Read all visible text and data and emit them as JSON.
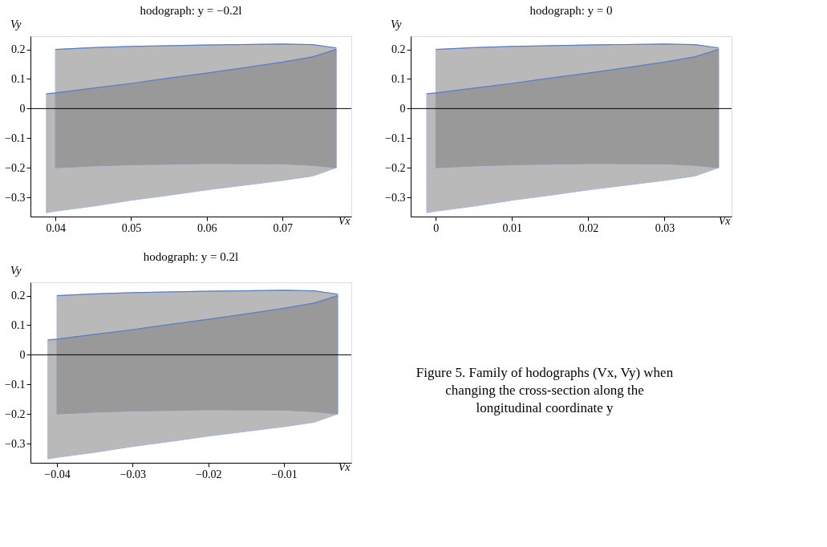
{
  "chart_data": [
    {
      "type": "line",
      "title": "hodograph: y = −0.2l",
      "xlabel": "Vx",
      "ylabel": "Vy",
      "xlim": [
        0.0367,
        0.0791
      ],
      "ylim": [
        -0.365,
        0.245
      ],
      "xticks": [
        0.04,
        0.05,
        0.06,
        0.07
      ],
      "yticks": [
        -0.3,
        -0.2,
        -0.1,
        0,
        0.1,
        0.2
      ],
      "grid": false,
      "marker": "none",
      "ref_lines": [
        {
          "axis": "y",
          "value": 0,
          "color": "#000000"
        }
      ],
      "series": [
        {
          "color": "#5b7fc7",
          "x": [
            0.04,
            0.045,
            0.05,
            0.06,
            0.07,
            0.074,
            0.0771
          ],
          "values": [
            0.2,
            0.206,
            0.21,
            0.215,
            0.218,
            0.216,
            0.205
          ],
          "upper": [
            0.2,
            0.206,
            0.21,
            0.215,
            0.218,
            0.216,
            0.205
          ],
          "lower": [
            -0.2,
            -0.194,
            -0.19,
            -0.186,
            -0.187,
            -0.192,
            -0.2
          ]
        },
        {
          "color": "#5b7fc7",
          "x": [
            0.0388,
            0.04,
            0.045,
            0.05,
            0.055,
            0.06,
            0.065,
            0.07,
            0.074,
            0.0771
          ],
          "values": [
            0.05,
            0.053,
            0.069,
            0.085,
            0.103,
            0.12,
            0.138,
            0.157,
            0.175,
            0.2
          ],
          "upper": [
            0.05,
            0.053,
            0.069,
            0.085,
            0.103,
            0.12,
            0.138,
            0.157,
            0.175,
            0.2
          ],
          "lower": [
            -0.352,
            -0.347,
            -0.33,
            -0.31,
            -0.293,
            -0.275,
            -0.259,
            -0.243,
            -0.228,
            -0.2
          ]
        }
      ]
    },
    {
      "type": "line",
      "title": "hodograph: y = 0",
      "xlabel": "Vx",
      "ylabel": "Vy",
      "xlim": [
        -0.0033,
        0.0388
      ],
      "ylim": [
        -0.365,
        0.245
      ],
      "xticks": [
        0,
        0.01,
        0.02,
        0.03
      ],
      "yticks": [
        -0.3,
        -0.2,
        -0.1,
        0,
        0.1,
        0.2
      ],
      "grid": false,
      "marker": "none",
      "ref_lines": [
        {
          "axis": "y",
          "value": 0,
          "color": "#000000"
        }
      ],
      "series": [
        {
          "color": "#5b7fc7",
          "x": [
            0,
            0.005,
            0.01,
            0.02,
            0.03,
            0.034,
            0.0371
          ],
          "values": [
            0.2,
            0.206,
            0.21,
            0.215,
            0.218,
            0.216,
            0.205
          ],
          "upper": [
            0.2,
            0.206,
            0.21,
            0.215,
            0.218,
            0.216,
            0.205
          ],
          "lower": [
            -0.2,
            -0.194,
            -0.19,
            -0.186,
            -0.187,
            -0.192,
            -0.2
          ]
        },
        {
          "color": "#5b7fc7",
          "x": [
            -0.0012,
            0,
            0.005,
            0.01,
            0.015,
            0.02,
            0.025,
            0.03,
            0.034,
            0.0371
          ],
          "values": [
            0.05,
            0.053,
            0.069,
            0.085,
            0.103,
            0.12,
            0.138,
            0.157,
            0.175,
            0.2
          ],
          "upper": [
            0.05,
            0.053,
            0.069,
            0.085,
            0.103,
            0.12,
            0.138,
            0.157,
            0.175,
            0.2
          ],
          "lower": [
            -0.352,
            -0.347,
            -0.33,
            -0.31,
            -0.293,
            -0.275,
            -0.259,
            -0.243,
            -0.228,
            -0.2
          ]
        }
      ]
    },
    {
      "type": "line",
      "title": "hodograph: y = 0.2l",
      "xlabel": "Vx",
      "ylabel": "Vy",
      "xlim": [
        -0.0435,
        -0.0011
      ],
      "ylim": [
        -0.365,
        0.245
      ],
      "xticks": [
        -0.04,
        -0.03,
        -0.02,
        -0.01
      ],
      "yticks": [
        -0.3,
        -0.2,
        -0.1,
        0,
        0.1,
        0.2
      ],
      "grid": false,
      "marker": "none",
      "ref_lines": [
        {
          "axis": "y",
          "value": 0,
          "color": "#000000"
        }
      ],
      "series": [
        {
          "color": "#5b7fc7",
          "x": [
            -0.04,
            -0.035,
            -0.03,
            -0.02,
            -0.01,
            -0.006,
            -0.0029
          ],
          "values": [
            0.2,
            0.206,
            0.21,
            0.215,
            0.218,
            0.216,
            0.205
          ],
          "upper": [
            0.2,
            0.206,
            0.21,
            0.215,
            0.218,
            0.216,
            0.205
          ],
          "lower": [
            -0.2,
            -0.194,
            -0.19,
            -0.186,
            -0.187,
            -0.192,
            -0.2
          ]
        },
        {
          "color": "#5b7fc7",
          "x": [
            -0.0412,
            -0.04,
            -0.035,
            -0.03,
            -0.025,
            -0.02,
            -0.015,
            -0.01,
            -0.006,
            -0.0029
          ],
          "values": [
            0.05,
            0.053,
            0.069,
            0.085,
            0.103,
            0.12,
            0.138,
            0.157,
            0.175,
            0.2
          ],
          "upper": [
            0.05,
            0.053,
            0.069,
            0.085,
            0.103,
            0.12,
            0.138,
            0.157,
            0.175,
            0.2
          ],
          "lower": [
            -0.352,
            -0.347,
            -0.33,
            -0.31,
            -0.293,
            -0.275,
            -0.259,
            -0.243,
            -0.228,
            -0.2
          ]
        }
      ]
    },
    {
      "type": "other",
      "annotations": [
        "Figure 5.  Family of hodographs (Vx, Vy) when changing the cross-section along the longitudinal coordinate y"
      ]
    }
  ]
}
